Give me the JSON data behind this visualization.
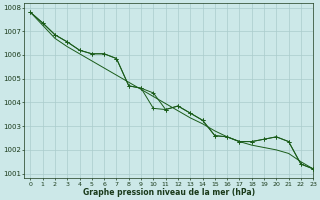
{
  "title": "Graphe pression niveau de la mer (hPa)",
  "background_color": "#cce8e8",
  "grid_color": "#aacccc",
  "line_color": "#1a5c1a",
  "xlim": [
    -0.5,
    23
  ],
  "ylim": [
    1000.8,
    1008.2
  ],
  "xticks": [
    0,
    1,
    2,
    3,
    4,
    5,
    6,
    7,
    8,
    9,
    10,
    11,
    12,
    13,
    14,
    15,
    16,
    17,
    18,
    19,
    20,
    21,
    22,
    23
  ],
  "yticks": [
    1001,
    1002,
    1003,
    1004,
    1005,
    1006,
    1007,
    1008
  ],
  "series_main": [
    1007.8,
    1007.35,
    1006.85,
    1006.55,
    1006.2,
    1006.05,
    1006.05,
    1005.85,
    1004.7,
    1004.6,
    1004.4,
    1003.7,
    1003.85,
    1003.55,
    1003.25,
    1002.6,
    1002.55,
    1002.35,
    1002.35,
    1002.45,
    1002.55,
    1002.35,
    1001.4,
    1001.2
  ],
  "series_jagged": [
    1007.8,
    1007.35,
    1006.85,
    1006.55,
    1006.2,
    1006.05,
    1006.05,
    1005.85,
    1004.7,
    1004.6,
    1003.75,
    1003.7,
    1003.85,
    1003.55,
    1003.25,
    1002.6,
    1002.55,
    1002.35,
    1002.35,
    1002.45,
    1002.55,
    1002.35,
    1001.4,
    1001.2
  ],
  "series_smooth": [
    1007.8,
    1007.25,
    1006.7,
    1006.35,
    1006.05,
    1005.75,
    1005.45,
    1005.15,
    1004.85,
    1004.55,
    1004.25,
    1003.95,
    1003.65,
    1003.35,
    1003.1,
    1002.8,
    1002.55,
    1002.35,
    1002.2,
    1002.1,
    1002.0,
    1001.85,
    1001.5,
    1001.2
  ],
  "xlabel_fontsize": 5.5,
  "ylabel_fontsize": 5,
  "tick_labelsize": 4.5
}
